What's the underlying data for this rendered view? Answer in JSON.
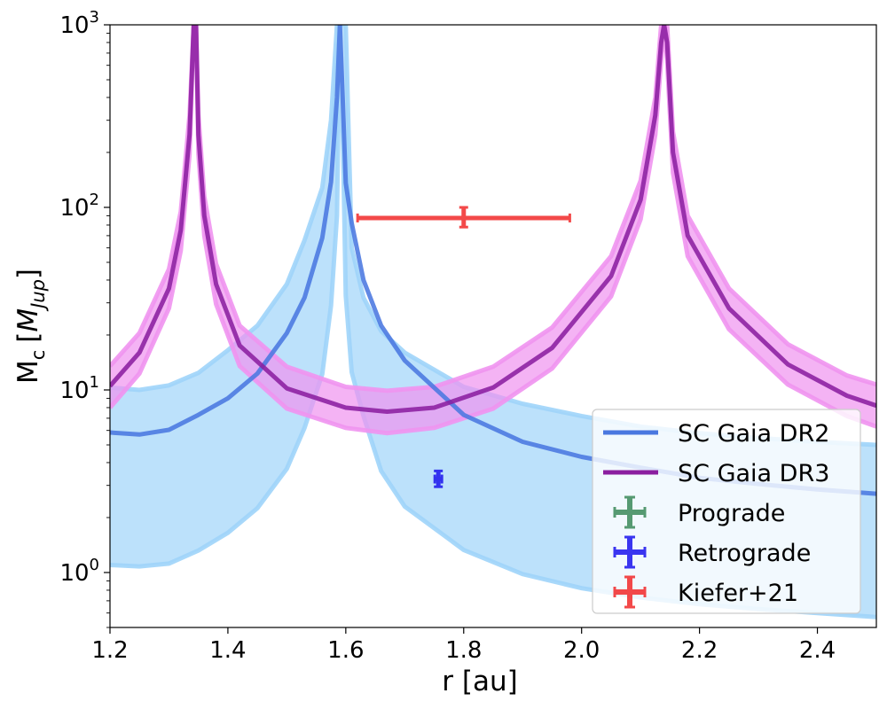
{
  "chart_data": {
    "type": "line",
    "xlabel": "r [au]",
    "ylabel": {
      "base": "M",
      "sub": "c",
      "unit_base": "M",
      "unit_sub": "Jup"
    },
    "xlim": [
      1.2,
      2.5
    ],
    "ylim": [
      0.5,
      1000
    ],
    "yscale": "log",
    "x_ticks": [
      "1.2",
      "1.4",
      "1.6",
      "1.8",
      "2.0",
      "2.2",
      "2.4"
    ],
    "x_tick_values": [
      1.2,
      1.4,
      1.6,
      1.8,
      2.0,
      2.2,
      2.4
    ],
    "y_ticks": [
      {
        "value": 1,
        "base": "10",
        "exp": "0"
      },
      {
        "value": 10,
        "base": "10",
        "exp": "1"
      },
      {
        "value": 100,
        "base": "10",
        "exp": "2"
      },
      {
        "value": 1000,
        "base": "10",
        "exp": "3"
      }
    ],
    "grid": false,
    "legend_position": "lower-right",
    "series": [
      {
        "name": "SC Gaia DR2",
        "color": "#4a78e0",
        "band_color": "#9fd4fa",
        "x": [
          1.2,
          1.25,
          1.3,
          1.35,
          1.4,
          1.45,
          1.5,
          1.53,
          1.56,
          1.575,
          1.585,
          1.59,
          1.595,
          1.6,
          1.61,
          1.63,
          1.66,
          1.7,
          1.8,
          1.9,
          2.0,
          2.1,
          2.2,
          2.3,
          2.4,
          2.5
        ],
        "y": [
          5.85,
          5.7,
          6.05,
          7.3,
          9.0,
          12.3,
          20.5,
          32.0,
          68.0,
          138.0,
          400.0,
          1000.0,
          380.0,
          136.0,
          82.0,
          40.0,
          22.5,
          14.5,
          7.3,
          5.2,
          4.3,
          3.75,
          3.3,
          3.05,
          2.85,
          2.7
        ],
        "band_upper": [
          10.3,
          10.0,
          10.6,
          12.4,
          16.5,
          22.5,
          38.0,
          66.0,
          128.0,
          300.0,
          1000.0,
          1000.0,
          1000.0,
          1000.0,
          60.0,
          32.0,
          21.0,
          16.0,
          10.4,
          8.4,
          7.2,
          6.3,
          5.8,
          5.45,
          5.2,
          5.0
        ],
        "band_lower": [
          1.1,
          1.08,
          1.12,
          1.32,
          1.65,
          2.25,
          3.7,
          6.2,
          12.2,
          29.0,
          90.0,
          1000.0,
          250.0,
          33.0,
          12.5,
          7.2,
          3.6,
          2.3,
          1.33,
          0.98,
          0.82,
          0.73,
          0.67,
          0.63,
          0.6,
          0.57
        ]
      },
      {
        "name": "SC Gaia DR3",
        "color": "#8b1fa0",
        "band_color": "#f093ef",
        "x": [
          1.2,
          1.25,
          1.3,
          1.32,
          1.335,
          1.342,
          1.346,
          1.35,
          1.36,
          1.38,
          1.42,
          1.5,
          1.6,
          1.67,
          1.75,
          1.85,
          1.95,
          2.05,
          2.1,
          2.125,
          2.135,
          2.14,
          2.145,
          2.155,
          2.18,
          2.25,
          2.35,
          2.45,
          2.5
        ],
        "y": [
          10.5,
          16.0,
          36.0,
          75.0,
          250.0,
          1000.0,
          1000.0,
          250.0,
          90.0,
          38.0,
          17.5,
          10.2,
          8.0,
          7.6,
          8.0,
          10.3,
          17.0,
          42.0,
          110.0,
          320.0,
          800.0,
          1000.0,
          800.0,
          200.0,
          70.0,
          28.0,
          13.8,
          9.3,
          8.2
        ],
        "band_upper": [
          13.5,
          20.5,
          46.0,
          95.0,
          320.0,
          1000.0,
          1000.0,
          320.0,
          115.0,
          49.0,
          22.5,
          13.4,
          10.4,
          9.9,
          10.4,
          13.4,
          22.0,
          54.0,
          140.0,
          400.0,
          1000.0,
          1000.0,
          1000.0,
          260.0,
          90.0,
          36.0,
          17.8,
          12.0,
          10.7
        ],
        "band_lower": [
          8.0,
          12.3,
          28.0,
          58.0,
          195.0,
          1000.0,
          1000.0,
          195.0,
          70.0,
          29.5,
          13.5,
          7.9,
          6.2,
          5.8,
          6.2,
          7.9,
          13.1,
          32.5,
          86.0,
          250.0,
          640.0,
          1000.0,
          640.0,
          155.0,
          54.0,
          21.5,
          10.7,
          7.2,
          6.3
        ]
      }
    ],
    "points": [
      {
        "name": "Prograde",
        "color": "#3b8a5a",
        "x": null,
        "y": null
      },
      {
        "name": "Retrograde",
        "color": "#1b14ee",
        "x": 1.757,
        "y": 3.25,
        "xerr": 0.006,
        "yerr_lo": 0.3,
        "yerr_hi": 0.35
      },
      {
        "name": "Kiefer+21",
        "color": "#f22a2a",
        "x": 1.8,
        "y": 87.5,
        "xerr": 0.18,
        "yerr_lo": 9.5,
        "yerr_hi": 12.5
      }
    ]
  }
}
